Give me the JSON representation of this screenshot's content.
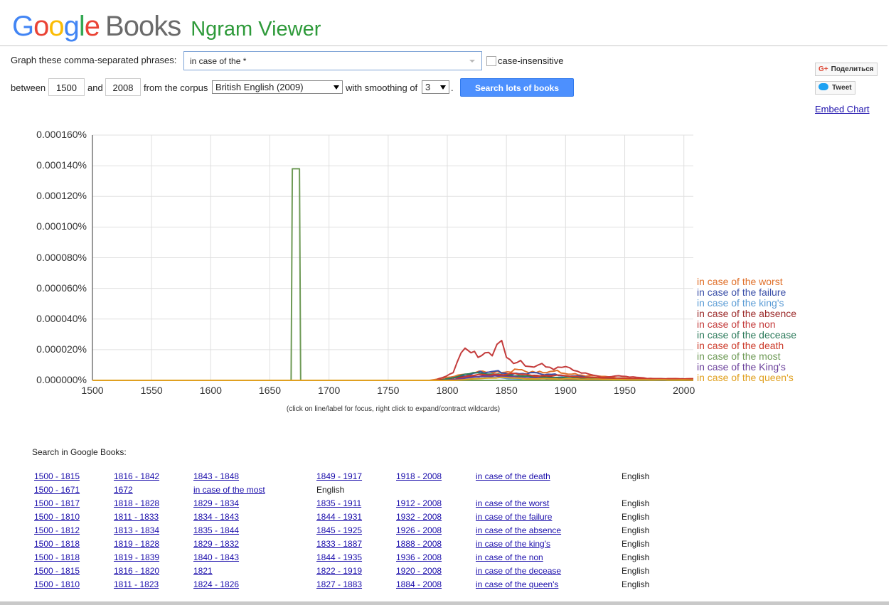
{
  "header": {
    "logo_google": "Google",
    "logo_books": "Books",
    "title": "Ngram Viewer"
  },
  "form": {
    "phrases_label": "Graph these comma-separated phrases:",
    "phrases_value": "in case of the *",
    "case_label": "case-insensitive",
    "between_label": "between",
    "year_start": "1500",
    "and_label": "and",
    "year_end": "2008",
    "corpus_label": "from the corpus",
    "corpus_value": "British English (2009)",
    "smoothing_label": "with smoothing of",
    "smoothing_value": "3",
    "period": ".",
    "search_button": "Search lots of books"
  },
  "social": {
    "share_label": "Поделиться",
    "tweet_label": "Tweet",
    "embed_label": "Embed Chart"
  },
  "chart_data": {
    "type": "line",
    "y_ticks": [
      "0.000000%",
      "0.000020%",
      "0.000040%",
      "0.000060%",
      "0.000080%",
      "0.000100%",
      "0.000120%",
      "0.000140%",
      "0.000160%"
    ],
    "x_ticks": [
      "1500",
      "1550",
      "1600",
      "1650",
      "1700",
      "1750",
      "1800",
      "1850",
      "1900",
      "1950",
      "2000"
    ],
    "xlim": [
      1500,
      2008
    ],
    "ylim": [
      0,
      0.00016
    ],
    "y_unit": "%",
    "grid": true,
    "legend_position": "right",
    "hint": "(click on line/label for focus, right click to expand/contract wildcards)",
    "series": [
      {
        "name": "in case of the worst",
        "color": "#e0702a",
        "points": [
          [
            1500,
            0
          ],
          [
            1785,
            0
          ],
          [
            1800,
            2e-06
          ],
          [
            1815,
            4e-06
          ],
          [
            1830,
            6e-06
          ],
          [
            1845,
            5e-06
          ],
          [
            1860,
            7e-06
          ],
          [
            1875,
            5e-06
          ],
          [
            1890,
            6e-06
          ],
          [
            1905,
            4e-06
          ],
          [
            1920,
            3e-06
          ],
          [
            1940,
            2e-06
          ],
          [
            1960,
            1e-06
          ],
          [
            1980,
            1e-06
          ],
          [
            2008,
            1e-06
          ]
        ]
      },
      {
        "name": "in case of the failure",
        "color": "#3a4fa8",
        "points": [
          [
            1500,
            0
          ],
          [
            1790,
            0
          ],
          [
            1810,
            2e-06
          ],
          [
            1825,
            5e-06
          ],
          [
            1840,
            6e-06
          ],
          [
            1855,
            4e-06
          ],
          [
            1870,
            5e-06
          ],
          [
            1885,
            4e-06
          ],
          [
            1900,
            3e-06
          ],
          [
            1920,
            2e-06
          ],
          [
            1950,
            1e-06
          ],
          [
            2008,
            5e-07
          ]
        ]
      },
      {
        "name": "in case of the king's",
        "color": "#5a9bd5",
        "points": [
          [
            1500,
            0
          ],
          [
            1795,
            0
          ],
          [
            1815,
            1e-06
          ],
          [
            1835,
            2e-06
          ],
          [
            1855,
            1e-06
          ],
          [
            1880,
            1e-06
          ],
          [
            1920,
            5e-07
          ],
          [
            2008,
            2e-07
          ]
        ]
      },
      {
        "name": "in case of the absence",
        "color": "#9c2a2a",
        "points": [
          [
            1500,
            0
          ],
          [
            1790,
            0
          ],
          [
            1810,
            2e-06
          ],
          [
            1830,
            3e-06
          ],
          [
            1850,
            3e-06
          ],
          [
            1870,
            3e-06
          ],
          [
            1890,
            2e-06
          ],
          [
            1910,
            2e-06
          ],
          [
            1940,
            1e-06
          ],
          [
            1980,
            1e-06
          ],
          [
            2008,
            8e-07
          ]
        ]
      },
      {
        "name": "in case of the non",
        "color": "#c43c3c",
        "points": [
          [
            1500,
            0
          ],
          [
            1790,
            0
          ],
          [
            1805,
            5e-06
          ],
          [
            1815,
            2.1e-05
          ],
          [
            1820,
            1.8e-05
          ],
          [
            1826,
            1.5e-05
          ],
          [
            1832,
            1.8e-05
          ],
          [
            1838,
            1.6e-05
          ],
          [
            1846,
            2.6e-05
          ],
          [
            1850,
            1.5e-05
          ],
          [
            1856,
            1.1e-05
          ],
          [
            1862,
            1.3e-05
          ],
          [
            1870,
            9e-06
          ],
          [
            1880,
            1.1e-05
          ],
          [
            1890,
            7e-06
          ],
          [
            1900,
            9e-06
          ],
          [
            1910,
            6e-06
          ],
          [
            1920,
            4e-06
          ],
          [
            1930,
            2e-06
          ],
          [
            1945,
            3e-06
          ],
          [
            1960,
            2e-06
          ],
          [
            1975,
            1e-06
          ],
          [
            1990,
            1e-06
          ],
          [
            2008,
            8e-07
          ]
        ]
      },
      {
        "name": "in case of the decease",
        "color": "#2b7a5a",
        "points": [
          [
            1500,
            0
          ],
          [
            1795,
            0
          ],
          [
            1815,
            4e-06
          ],
          [
            1825,
            5e-06
          ],
          [
            1840,
            4e-06
          ],
          [
            1860,
            3e-06
          ],
          [
            1880,
            2e-06
          ],
          [
            1900,
            2e-06
          ],
          [
            1930,
            1e-06
          ],
          [
            2008,
            3e-07
          ]
        ]
      },
      {
        "name": "in case of the death",
        "color": "#cc3b2b",
        "points": [
          [
            1500,
            0
          ],
          [
            1800,
            0
          ],
          [
            1820,
            3e-06
          ],
          [
            1840,
            4e-06
          ],
          [
            1860,
            4e-06
          ],
          [
            1880,
            3e-06
          ],
          [
            1900,
            3e-06
          ],
          [
            1920,
            2e-06
          ],
          [
            1950,
            1e-06
          ],
          [
            2008,
            1e-06
          ]
        ]
      },
      {
        "name": "in case of the most",
        "color": "#6e9a56",
        "points": [
          [
            1500,
            0
          ],
          [
            1668,
            0
          ],
          [
            1669,
            0.000138
          ],
          [
            1675,
            0.000138
          ],
          [
            1676,
            0
          ],
          [
            2008,
            0
          ]
        ]
      },
      {
        "name": "in case of the King's",
        "color": "#6a3f9a",
        "points": [
          [
            1500,
            0
          ],
          [
            1800,
            0
          ],
          [
            1820,
            2e-06
          ],
          [
            1840,
            3e-06
          ],
          [
            1860,
            2e-06
          ],
          [
            1890,
            1e-06
          ],
          [
            1930,
            5e-07
          ],
          [
            2008,
            2e-07
          ]
        ]
      },
      {
        "name": "in case of the queen's",
        "color": "#e0a020",
        "points": [
          [
            1500,
            0
          ],
          [
            1805,
            0
          ],
          [
            1825,
            1e-06
          ],
          [
            1845,
            2e-06
          ],
          [
            1865,
            1e-06
          ],
          [
            1900,
            1e-06
          ],
          [
            1950,
            4e-07
          ],
          [
            2008,
            2e-07
          ]
        ]
      }
    ]
  },
  "results": {
    "title": "Search in Google Books:",
    "rows": [
      {
        "links": [
          "1500 - 1815",
          "1816 - 1842",
          "1843 - 1848",
          "1849 - 1917",
          "1918 - 2008"
        ],
        "phrase": "in case of the death",
        "lang": "English"
      },
      {
        "links": [
          "1500 - 1671",
          "1672"
        ],
        "phrase": "in case of the most",
        "lang": "English"
      },
      {
        "links": [
          "1500 - 1817",
          "1818 - 1828",
          "1829 - 1834",
          "1835 - 1911",
          "1912 - 2008"
        ],
        "phrase": "in case of the worst",
        "lang": "English"
      },
      {
        "links": [
          "1500 - 1810",
          "1811 - 1833",
          "1834 - 1843",
          "1844 - 1931",
          "1932 - 2008"
        ],
        "phrase": "in case of the failure",
        "lang": "English"
      },
      {
        "links": [
          "1500 - 1812",
          "1813 - 1834",
          "1835 - 1844",
          "1845 - 1925",
          "1926 - 2008"
        ],
        "phrase": "in case of the absence",
        "lang": "English"
      },
      {
        "links": [
          "1500 - 1818",
          "1819 - 1828",
          "1829 - 1832",
          "1833 - 1887",
          "1888 - 2008"
        ],
        "phrase": "in case of the king's",
        "lang": "English"
      },
      {
        "links": [
          "1500 - 1818",
          "1819 - 1839",
          "1840 - 1843",
          "1844 - 1935",
          "1936 - 2008"
        ],
        "phrase": "in case of the non",
        "lang": "English"
      },
      {
        "links": [
          "1500 - 1815",
          "1816 - 1820",
          "1821",
          "1822 - 1919",
          "1920 - 2008"
        ],
        "phrase": "in case of the decease",
        "lang": "English"
      },
      {
        "links": [
          "1500 - 1810",
          "1811 - 1823",
          "1824 - 1826",
          "1827 - 1883",
          "1884 - 2008"
        ],
        "phrase": "in case of the queen's",
        "lang": "English"
      }
    ]
  }
}
